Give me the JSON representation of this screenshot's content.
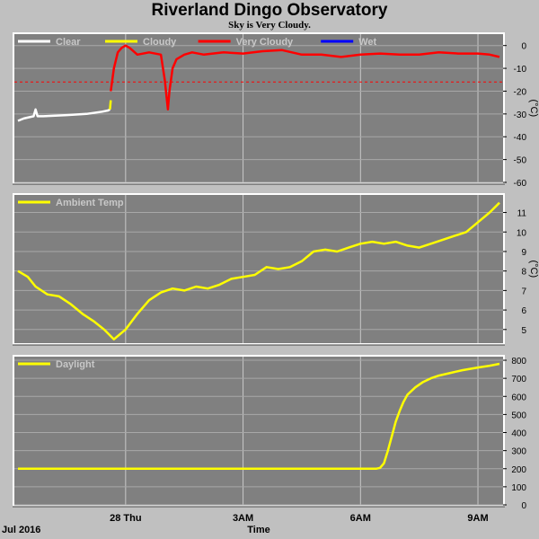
{
  "title": "Riverland Dingo Observatory",
  "subtitle": "Sky is Very Cloudy.",
  "x_axis": {
    "label": "Time",
    "date_label": "Jul 2016",
    "ticks": [
      {
        "hours": 0,
        "label": "28 Thu"
      },
      {
        "hours": 3,
        "label": "3AM"
      },
      {
        "hours": 6,
        "label": "6AM"
      },
      {
        "hours": 9,
        "label": "9AM"
      }
    ],
    "range_hours": [
      -2.75,
      9.55
    ]
  },
  "chart_data": [
    {
      "type": "line",
      "panel": "sky",
      "unit_label": "(°C)",
      "ylim": [
        -60,
        5
      ],
      "yticks": [
        0,
        -10,
        -20,
        -30,
        -40,
        -50,
        -60
      ],
      "threshold": {
        "value": -16,
        "color": "#ff0000",
        "style": "dashed"
      },
      "legend": [
        {
          "name": "Clear",
          "color": "#ffffff"
        },
        {
          "name": "Cloudy",
          "color": "#ffff00"
        },
        {
          "name": "Very Cloudy",
          "color": "#ff0000"
        },
        {
          "name": "Wet",
          "color": "#0000ff"
        }
      ],
      "series": [
        {
          "name": "Clear",
          "color": "#ffffff",
          "x": [
            -2.75,
            -2.6,
            -2.35,
            -2.3,
            -2.25,
            -2.1,
            -1.5,
            -1.0,
            -0.6,
            -0.45,
            -0.4
          ],
          "y": [
            -33,
            -32,
            -31,
            -28,
            -31,
            -31,
            -30.5,
            -30,
            -29,
            -28.5,
            -28
          ]
        },
        {
          "name": "Cloudy",
          "color": "#ffff00",
          "x": [
            -0.4,
            -0.38
          ],
          "y": [
            -28,
            -24
          ]
        },
        {
          "name": "Very Cloudy",
          "color": "#ff0000",
          "x": [
            -0.38,
            -0.3,
            -0.2,
            -0.1,
            0.0,
            0.1,
            0.3,
            0.6,
            0.9,
            1.0,
            1.08,
            1.12,
            1.2,
            1.3,
            1.5,
            1.7,
            2.0,
            2.5,
            3.0,
            3.5,
            4.0,
            4.5,
            5.0,
            5.5,
            6.0,
            6.5,
            7.0,
            7.5,
            8.0,
            8.5,
            9.0,
            9.3,
            9.55
          ],
          "y": [
            -20,
            -10,
            -3,
            -1,
            0,
            -1,
            -4,
            -3,
            -4,
            -15,
            -28,
            -20,
            -10,
            -6,
            -4,
            -3,
            -4,
            -3,
            -3.5,
            -2.5,
            -2,
            -4,
            -4,
            -5,
            -4,
            -3.5,
            -4,
            -4,
            -3,
            -3.5,
            -3.5,
            -4,
            -5
          ]
        }
      ]
    },
    {
      "type": "line",
      "panel": "ambient",
      "unit_label": "(°C)",
      "ylim": [
        4.3,
        11.9
      ],
      "yticks": [
        5,
        6,
        7,
        8,
        9,
        10,
        11
      ],
      "legend": [
        {
          "name": "Ambient Temp",
          "color": "#ffff00"
        }
      ],
      "series": [
        {
          "name": "Ambient Temp",
          "color": "#ffff00",
          "x": [
            -2.75,
            -2.5,
            -2.3,
            -2.0,
            -1.7,
            -1.4,
            -1.1,
            -0.8,
            -0.55,
            -0.3,
            0.0,
            0.3,
            0.6,
            0.9,
            1.2,
            1.5,
            1.8,
            2.1,
            2.4,
            2.7,
            3.0,
            3.3,
            3.6,
            3.9,
            4.2,
            4.5,
            4.8,
            5.1,
            5.4,
            5.7,
            6.0,
            6.3,
            6.6,
            6.9,
            7.2,
            7.5,
            7.8,
            8.1,
            8.4,
            8.7,
            9.0,
            9.3,
            9.55
          ],
          "y": [
            8.0,
            7.7,
            7.2,
            6.8,
            6.7,
            6.3,
            5.8,
            5.4,
            5.0,
            4.5,
            5.0,
            5.8,
            6.5,
            6.9,
            7.1,
            7.0,
            7.2,
            7.1,
            7.3,
            7.6,
            7.7,
            7.8,
            8.2,
            8.1,
            8.2,
            8.5,
            9.0,
            9.1,
            9.0,
            9.2,
            9.4,
            9.5,
            9.4,
            9.5,
            9.3,
            9.2,
            9.4,
            9.6,
            9.8,
            10.0,
            10.5,
            11.0,
            11.5
          ]
        }
      ]
    },
    {
      "type": "line",
      "panel": "daylight",
      "ylim": [
        0,
        820
      ],
      "yticks": [
        0,
        100,
        200,
        300,
        400,
        500,
        600,
        700,
        800
      ],
      "legend": [
        {
          "name": "Daylight",
          "color": "#ffff00"
        }
      ],
      "series": [
        {
          "name": "Daylight",
          "color": "#ffff00",
          "x": [
            -2.75,
            -2.0,
            -1.0,
            0.0,
            1.0,
            2.0,
            3.0,
            4.0,
            5.0,
            6.0,
            6.4,
            6.5,
            6.6,
            6.7,
            6.8,
            6.9,
            7.0,
            7.1,
            7.2,
            7.4,
            7.6,
            7.8,
            8.0,
            8.3,
            8.6,
            9.0,
            9.3,
            9.55
          ],
          "y": [
            200,
            200,
            200,
            200,
            200,
            200,
            200,
            200,
            200,
            200,
            200,
            205,
            230,
            300,
            380,
            460,
            520,
            570,
            610,
            650,
            680,
            700,
            715,
            730,
            745,
            760,
            770,
            780
          ]
        }
      ]
    }
  ]
}
